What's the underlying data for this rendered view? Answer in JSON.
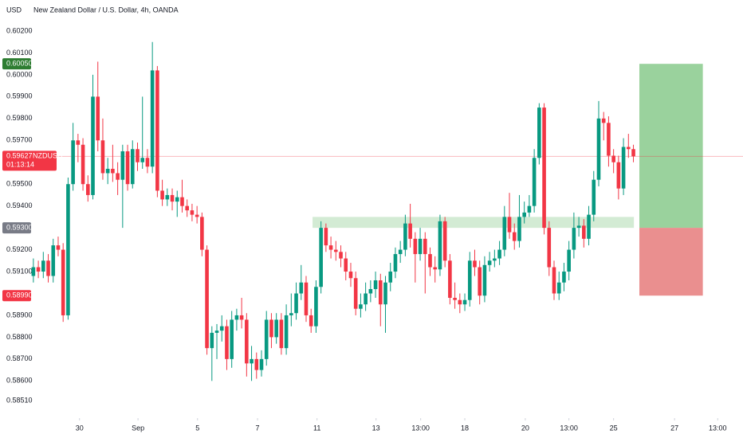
{
  "chart_data": {
    "type": "candlestick",
    "currency": "USD",
    "title": "New Zealand Dollar / U.S. Dollar, 4h, OANDA",
    "up_color": "#089981",
    "down_color": "#f23645",
    "ylim": [
      0.5843,
      0.6024
    ],
    "xlim": [
      -0.3,
      143.1
    ],
    "yticks": [
      {
        "value": 0.602,
        "label": "0.60200"
      },
      {
        "value": 0.601,
        "label": "0.60100"
      },
      {
        "value": 0.6,
        "label": "0.60000"
      },
      {
        "value": 0.599,
        "label": "0.59900"
      },
      {
        "value": 0.598,
        "label": "0.59800"
      },
      {
        "value": 0.597,
        "label": "0.59700"
      },
      {
        "value": 0.595,
        "label": "0.59500"
      },
      {
        "value": 0.594,
        "label": "0.59400"
      },
      {
        "value": 0.592,
        "label": "0.59200"
      },
      {
        "value": 0.591,
        "label": "0.59100"
      },
      {
        "value": 0.589,
        "label": "0.58900"
      },
      {
        "value": 0.588,
        "label": "0.58800"
      },
      {
        "value": 0.587,
        "label": "0.58700"
      },
      {
        "value": 0.586,
        "label": "0.58600"
      },
      {
        "value": 0.5851,
        "label": "0.58510"
      }
    ],
    "xticks": [
      {
        "value": 9.3,
        "label": "30"
      },
      {
        "value": 21.1,
        "label": "Sep"
      },
      {
        "value": 33.1,
        "label": "5"
      },
      {
        "value": 45.2,
        "label": "7"
      },
      {
        "value": 57.2,
        "label": "11"
      },
      {
        "value": 69.1,
        "label": "13"
      },
      {
        "value": 78.1,
        "label": "13:00"
      },
      {
        "value": 87,
        "label": "18"
      },
      {
        "value": 99.2,
        "label": "20"
      },
      {
        "value": 108,
        "label": "13:00"
      },
      {
        "value": 117,
        "label": "25"
      },
      {
        "value": 129.3,
        "label": "27"
      },
      {
        "value": 138,
        "label": "13:00"
      }
    ],
    "price_labels": [
      {
        "value": 0.6005,
        "label": "0.60050",
        "color": "#2e7d32"
      },
      {
        "value": 0.593,
        "label": "0.59300",
        "color": "#787b86"
      },
      {
        "value": 0.5899,
        "label": "0.58990",
        "color": "#f23645"
      }
    ],
    "last_price": {
      "value": 0.59627,
      "label": "0.59627",
      "symbol": "NZDUSD",
      "countdown": "01:13:14",
      "color": "#f23645"
    },
    "zone": {
      "low": 0.593,
      "high": 0.5935,
      "start": 56.3,
      "end": 121.1,
      "color": "#c8e6c9"
    },
    "position": {
      "entry": 0.593,
      "target": 0.6005,
      "stop": 0.5899,
      "start": 122.2,
      "end": 135,
      "profit_color": "#81c784",
      "loss_color": "#e57373"
    },
    "candles": [
      [
        0.5908,
        0.5916,
        0.5905,
        0.5912
      ],
      [
        0.5912,
        0.5915,
        0.5907,
        0.591
      ],
      [
        0.591,
        0.5919,
        0.5907,
        0.5915
      ],
      [
        0.5915,
        0.5918,
        0.5905,
        0.5908
      ],
      [
        0.5908,
        0.5925,
        0.5905,
        0.5922
      ],
      [
        0.5922,
        0.5926,
        0.5917,
        0.592
      ],
      [
        0.592,
        0.5923,
        0.5887,
        0.589
      ],
      [
        0.589,
        0.5953,
        0.5888,
        0.595
      ],
      [
        0.595,
        0.5978,
        0.5947,
        0.597
      ],
      [
        0.597,
        0.5973,
        0.596,
        0.5968
      ],
      [
        0.5968,
        0.5971,
        0.5947,
        0.595
      ],
      [
        0.595,
        0.5954,
        0.5942,
        0.5945
      ],
      [
        0.5945,
        0.6,
        0.5943,
        0.599
      ],
      [
        0.599,
        0.6006,
        0.5965,
        0.597
      ],
      [
        0.597,
        0.598,
        0.5952,
        0.5955
      ],
      [
        0.5955,
        0.5962,
        0.595,
        0.5957
      ],
      [
        0.5957,
        0.5968,
        0.5951,
        0.5955
      ],
      [
        0.5955,
        0.596,
        0.5945,
        0.5952
      ],
      [
        0.5952,
        0.5968,
        0.593,
        0.5965
      ],
      [
        0.5965,
        0.5968,
        0.5947,
        0.595
      ],
      [
        0.595,
        0.597,
        0.5948,
        0.5966
      ],
      [
        0.5966,
        0.5969,
        0.5956,
        0.596
      ],
      [
        0.596,
        0.599,
        0.5957,
        0.5962
      ],
      [
        0.5962,
        0.5966,
        0.5955,
        0.5958
      ],
      [
        0.5958,
        0.6015,
        0.5955,
        0.6002
      ],
      [
        0.6002,
        0.6004,
        0.5944,
        0.5947
      ],
      [
        0.5947,
        0.5952,
        0.594,
        0.5943
      ],
      [
        0.5943,
        0.5948,
        0.594,
        0.5945
      ],
      [
        0.5945,
        0.5948,
        0.5938,
        0.5942
      ],
      [
        0.5942,
        0.5947,
        0.5935,
        0.5944
      ],
      [
        0.5944,
        0.5952,
        0.5937,
        0.594
      ],
      [
        0.594,
        0.5943,
        0.5935,
        0.5938
      ],
      [
        0.5938,
        0.5941,
        0.5933,
        0.5936
      ],
      [
        0.5936,
        0.594,
        0.5932,
        0.5935
      ],
      [
        0.5935,
        0.5937,
        0.5917,
        0.592
      ],
      [
        0.592,
        0.5922,
        0.5872,
        0.5875
      ],
      [
        0.5875,
        0.5885,
        0.586,
        0.5882
      ],
      [
        0.5882,
        0.5886,
        0.587,
        0.5883
      ],
      [
        0.5883,
        0.589,
        0.5878,
        0.5885
      ],
      [
        0.5885,
        0.5888,
        0.5865,
        0.587
      ],
      [
        0.587,
        0.5892,
        0.5866,
        0.5888
      ],
      [
        0.5888,
        0.5893,
        0.5883,
        0.589
      ],
      [
        0.589,
        0.5898,
        0.5884,
        0.5888
      ],
      [
        0.5888,
        0.5891,
        0.5862,
        0.5868
      ],
      [
        0.5868,
        0.5876,
        0.586,
        0.587
      ],
      [
        0.587,
        0.5873,
        0.5861,
        0.5865
      ],
      [
        0.5865,
        0.5874,
        0.5862,
        0.587
      ],
      [
        0.587,
        0.5892,
        0.5867,
        0.5888
      ],
      [
        0.5888,
        0.5891,
        0.5875,
        0.588
      ],
      [
        0.588,
        0.5891,
        0.5877,
        0.5888
      ],
      [
        0.5888,
        0.5891,
        0.5872,
        0.5875
      ],
      [
        0.5875,
        0.5895,
        0.5872,
        0.589
      ],
      [
        0.589,
        0.59,
        0.5885,
        0.5891
      ],
      [
        0.5891,
        0.5905,
        0.5888,
        0.59
      ],
      [
        0.59,
        0.5913,
        0.5897,
        0.5905
      ],
      [
        0.5905,
        0.5908,
        0.5887,
        0.589
      ],
      [
        0.589,
        0.5893,
        0.5882,
        0.5885
      ],
      [
        0.5885,
        0.5906,
        0.5882,
        0.5903
      ],
      [
        0.5903,
        0.5933,
        0.59,
        0.593
      ],
      [
        0.593,
        0.5932,
        0.5919,
        0.5922
      ],
      [
        0.5922,
        0.5926,
        0.5916,
        0.592
      ],
      [
        0.592,
        0.5924,
        0.5915,
        0.5919
      ],
      [
        0.5919,
        0.5922,
        0.5912,
        0.5916
      ],
      [
        0.5916,
        0.5919,
        0.5906,
        0.591
      ],
      [
        0.591,
        0.5914,
        0.5903,
        0.5907
      ],
      [
        0.5907,
        0.591,
        0.589,
        0.5893
      ],
      [
        0.5893,
        0.59,
        0.5889,
        0.5895
      ],
      [
        0.5895,
        0.5905,
        0.5892,
        0.59
      ],
      [
        0.59,
        0.5906,
        0.5896,
        0.5902
      ],
      [
        0.5902,
        0.591,
        0.5898,
        0.5906
      ],
      [
        0.5906,
        0.5909,
        0.5885,
        0.5895
      ],
      [
        0.5895,
        0.5908,
        0.5882,
        0.5905
      ],
      [
        0.5905,
        0.5914,
        0.5901,
        0.591
      ],
      [
        0.591,
        0.5921,
        0.5907,
        0.5918
      ],
      [
        0.5918,
        0.5924,
        0.5914,
        0.592
      ],
      [
        0.592,
        0.5936,
        0.5917,
        0.5932
      ],
      [
        0.5932,
        0.5941,
        0.5921,
        0.5925
      ],
      [
        0.5925,
        0.5928,
        0.5905,
        0.5918
      ],
      [
        0.5918,
        0.593,
        0.5915,
        0.5925
      ],
      [
        0.5925,
        0.5928,
        0.59,
        0.5918
      ],
      [
        0.5918,
        0.5921,
        0.5908,
        0.5912
      ],
      [
        0.5912,
        0.5917,
        0.5905,
        0.5911
      ],
      [
        0.5911,
        0.5936,
        0.5908,
        0.5933
      ],
      [
        0.5933,
        0.5935,
        0.5912,
        0.5915
      ],
      [
        0.5915,
        0.5918,
        0.5895,
        0.5898
      ],
      [
        0.5898,
        0.5905,
        0.5893,
        0.5897
      ],
      [
        0.5897,
        0.59,
        0.5891,
        0.5895
      ],
      [
        0.5895,
        0.59,
        0.5892,
        0.5897
      ],
      [
        0.5897,
        0.5919,
        0.5894,
        0.5915
      ],
      [
        0.5915,
        0.592,
        0.5908,
        0.5912
      ],
      [
        0.5912,
        0.5915,
        0.5895,
        0.5899
      ],
      [
        0.5899,
        0.5917,
        0.5896,
        0.5913
      ],
      [
        0.5913,
        0.5919,
        0.591,
        0.5915
      ],
      [
        0.5915,
        0.592,
        0.5912,
        0.5916
      ],
      [
        0.5916,
        0.5924,
        0.5913,
        0.592
      ],
      [
        0.592,
        0.594,
        0.5917,
        0.5935
      ],
      [
        0.5935,
        0.5946,
        0.5925,
        0.5928
      ],
      [
        0.5928,
        0.5932,
        0.592,
        0.5924
      ],
      [
        0.5924,
        0.5945,
        0.5921,
        0.5935
      ],
      [
        0.5935,
        0.5942,
        0.5932,
        0.5937
      ],
      [
        0.5937,
        0.5945,
        0.5935,
        0.594
      ],
      [
        0.594,
        0.5966,
        0.5937,
        0.5962
      ],
      [
        0.5962,
        0.5987,
        0.5959,
        0.5985
      ],
      [
        0.5985,
        0.5987,
        0.5927,
        0.593
      ],
      [
        0.593,
        0.5933,
        0.5908,
        0.5912
      ],
      [
        0.5912,
        0.5915,
        0.5897,
        0.59
      ],
      [
        0.59,
        0.591,
        0.5897,
        0.5905
      ],
      [
        0.5905,
        0.5914,
        0.5901,
        0.591
      ],
      [
        0.591,
        0.5924,
        0.5906,
        0.592
      ],
      [
        0.592,
        0.5937,
        0.5916,
        0.593
      ],
      [
        0.593,
        0.5935,
        0.5926,
        0.5931
      ],
      [
        0.5931,
        0.5934,
        0.5921,
        0.5925
      ],
      [
        0.5925,
        0.594,
        0.5922,
        0.5936
      ],
      [
        0.5936,
        0.5956,
        0.5933,
        0.5952
      ],
      [
        0.5952,
        0.5988,
        0.5949,
        0.598
      ],
      [
        0.598,
        0.5983,
        0.597,
        0.5978
      ],
      [
        0.5978,
        0.5981,
        0.5958,
        0.5963
      ],
      [
        0.5963,
        0.5966,
        0.5955,
        0.596
      ],
      [
        0.596,
        0.5963,
        0.5943,
        0.5948
      ],
      [
        0.5948,
        0.5971,
        0.5945,
        0.5967
      ],
      [
        0.5967,
        0.5973,
        0.5962,
        0.5966
      ],
      [
        0.5966,
        0.5968,
        0.596,
        0.59627
      ]
    ]
  }
}
